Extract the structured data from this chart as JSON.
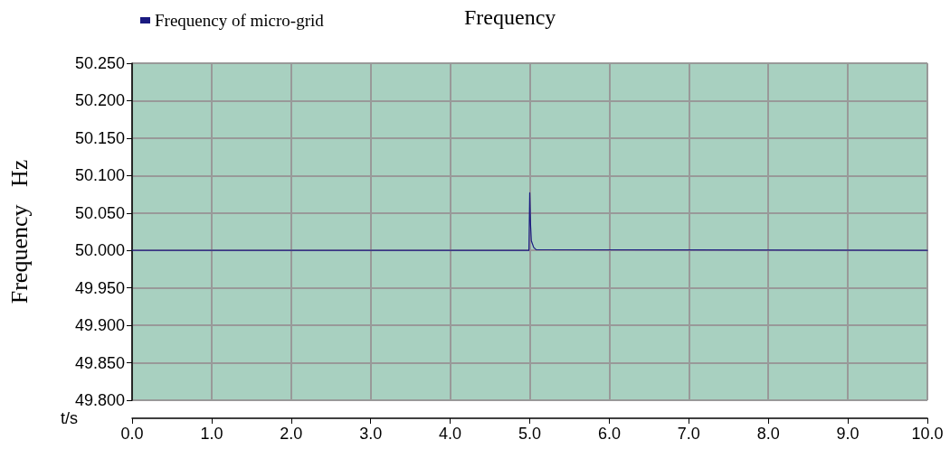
{
  "chart_data": {
    "type": "line",
    "title": "Frequency",
    "xlabel": "t/s",
    "ylabel": "Frequency   Hz",
    "series": [
      {
        "name": "Frequency of micro-grid",
        "color": "#1a1a80",
        "x": [
          0,
          4.99,
          5.0,
          5.01,
          5.02,
          5.03,
          5.05,
          5.08,
          10
        ],
        "values": [
          50.0,
          50.0,
          50.077,
          50.035,
          50.013,
          50.01,
          50.004,
          50.001,
          50.0
        ]
      }
    ],
    "xlim": [
      0,
      10
    ],
    "xticks": [
      {
        "value": 0,
        "label": "0.0"
      },
      {
        "value": 1,
        "label": "1.0"
      },
      {
        "value": 2,
        "label": "2.0"
      },
      {
        "value": 3,
        "label": "3.0"
      },
      {
        "value": 4,
        "label": "4.0"
      },
      {
        "value": 5,
        "label": "5.0"
      },
      {
        "value": 6,
        "label": "6.0"
      },
      {
        "value": 7,
        "label": "7.0"
      },
      {
        "value": 8,
        "label": "8.0"
      },
      {
        "value": 9,
        "label": "9.0"
      },
      {
        "value": 10,
        "label": "10.0"
      }
    ],
    "ylim": [
      49.8,
      50.25
    ],
    "yticks": [
      {
        "value": 49.8,
        "label": "49.800"
      },
      {
        "value": 49.85,
        "label": "49.850"
      },
      {
        "value": 49.9,
        "label": "49.900"
      },
      {
        "value": 49.95,
        "label": "49.950"
      },
      {
        "value": 50.0,
        "label": "50.000"
      },
      {
        "value": 50.05,
        "label": "50.050"
      },
      {
        "value": 50.1,
        "label": "50.100"
      },
      {
        "value": 50.15,
        "label": "50.150"
      },
      {
        "value": 50.2,
        "label": "50.200"
      },
      {
        "value": 50.25,
        "label": "50.250"
      }
    ],
    "grid": true,
    "legend": "top left",
    "marker": "none",
    "line_style": "solid"
  }
}
